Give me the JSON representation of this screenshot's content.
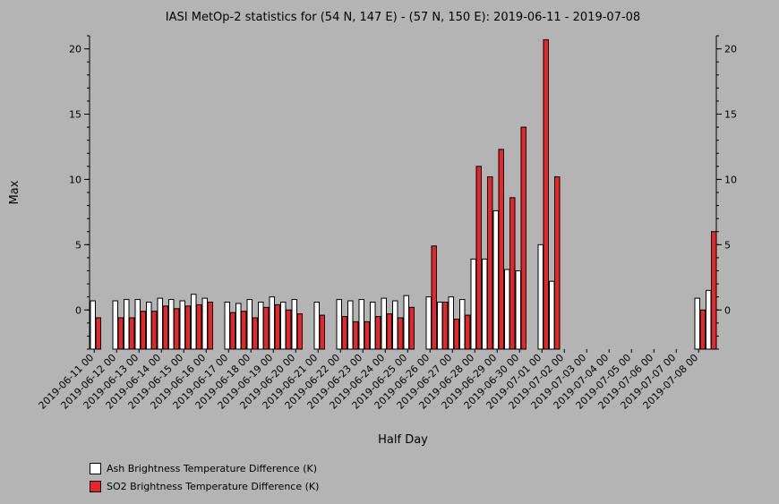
{
  "chart_data": {
    "type": "bar",
    "title": "IASI MetOp-2 statistics for (54 N, 147 E) - (57 N, 150 E): 2019-06-11 - 2019-07-08",
    "xlabel": "Half Day",
    "ylabel": "Max",
    "ylim": [
      -3.0,
      21.0
    ],
    "yticks": [
      0,
      5,
      10,
      15,
      20
    ],
    "grid": false,
    "legend_position": "bottom-left",
    "categories": [
      "2019-06-11 00",
      "2019-06-11 12",
      "2019-06-12 00",
      "2019-06-12 12",
      "2019-06-13 00",
      "2019-06-13 12",
      "2019-06-14 00",
      "2019-06-14 12",
      "2019-06-15 00",
      "2019-06-15 12",
      "2019-06-16 00",
      "2019-06-16 12",
      "2019-06-17 00",
      "2019-06-17 12",
      "2019-06-18 00",
      "2019-06-18 12",
      "2019-06-19 00",
      "2019-06-19 12",
      "2019-06-20 00",
      "2019-06-20 12",
      "2019-06-21 00",
      "2019-06-21 12",
      "2019-06-22 00",
      "2019-06-22 12",
      "2019-06-23 00",
      "2019-06-23 12",
      "2019-06-24 00",
      "2019-06-24 12",
      "2019-06-25 00",
      "2019-06-25 12",
      "2019-06-26 00",
      "2019-06-26 12",
      "2019-06-27 00",
      "2019-06-27 12",
      "2019-06-28 00",
      "2019-06-28 12",
      "2019-06-29 00",
      "2019-06-29 12",
      "2019-06-30 00",
      "2019-06-30 12",
      "2019-07-01 00",
      "2019-07-01 12",
      "2019-07-02 00",
      "2019-07-02 12",
      "2019-07-03 00",
      "2019-07-03 12",
      "2019-07-04 00",
      "2019-07-04 12",
      "2019-07-05 00",
      "2019-07-05 12",
      "2019-07-06 00",
      "2019-07-06 12",
      "2019-07-07 00",
      "2019-07-07 12",
      "2019-07-08 00",
      "2019-07-08 12"
    ],
    "tick_labels": [
      "2019-06-11 00",
      "2019-06-12 00",
      "2019-06-13 00",
      "2019-06-14 00",
      "2019-06-15 00",
      "2019-06-16 00",
      "2019-06-17 00",
      "2019-06-18 00",
      "2019-06-19 00",
      "2019-06-20 00",
      "2019-06-21 00",
      "2019-06-22 00",
      "2019-06-23 00",
      "2019-06-24 00",
      "2019-06-25 00",
      "2019-06-26 00",
      "2019-06-27 00",
      "2019-06-28 00",
      "2019-06-29 00",
      "2019-06-30 00",
      "2019-07-01 00",
      "2019-07-02 00",
      "2019-07-03 00",
      "2019-07-04 00",
      "2019-07-05 00",
      "2019-07-06 00",
      "2019-07-07 00",
      "2019-07-08 00"
    ],
    "series": [
      {
        "name": "Ash Brightness Temperature Difference (K)",
        "color": "#ffffff",
        "values": [
          0.7,
          null,
          0.7,
          0.8,
          0.8,
          0.6,
          0.9,
          0.8,
          0.7,
          1.2,
          0.9,
          null,
          0.6,
          0.5,
          0.8,
          0.6,
          1.0,
          0.6,
          0.8,
          null,
          0.6,
          null,
          0.8,
          0.7,
          0.8,
          0.6,
          0.9,
          0.7,
          1.1,
          null,
          1.0,
          0.6,
          1.0,
          0.8,
          3.9,
          3.9,
          7.6,
          3.1,
          3.0,
          null,
          5.0,
          2.2,
          null,
          null,
          null,
          null,
          null,
          null,
          null,
          null,
          null,
          null,
          null,
          null,
          0.9,
          1.5
        ]
      },
      {
        "name": "SO2 Brightness Temperature Difference (K)",
        "color": "#e8262a",
        "values": [
          -0.6,
          null,
          -0.6,
          -0.6,
          -0.1,
          -0.1,
          0.3,
          0.1,
          0.3,
          0.4,
          0.6,
          null,
          -0.2,
          -0.1,
          -0.6,
          0.2,
          0.4,
          0.0,
          -0.3,
          null,
          -0.4,
          null,
          -0.5,
          -0.9,
          -0.9,
          -0.5,
          -0.3,
          -0.6,
          0.2,
          null,
          4.9,
          0.6,
          -0.7,
          -0.4,
          11.0,
          10.2,
          12.3,
          8.6,
          14.0,
          null,
          20.7,
          10.2,
          null,
          null,
          null,
          null,
          null,
          null,
          null,
          null,
          null,
          null,
          null,
          null,
          0.0,
          6.0
        ]
      }
    ]
  }
}
